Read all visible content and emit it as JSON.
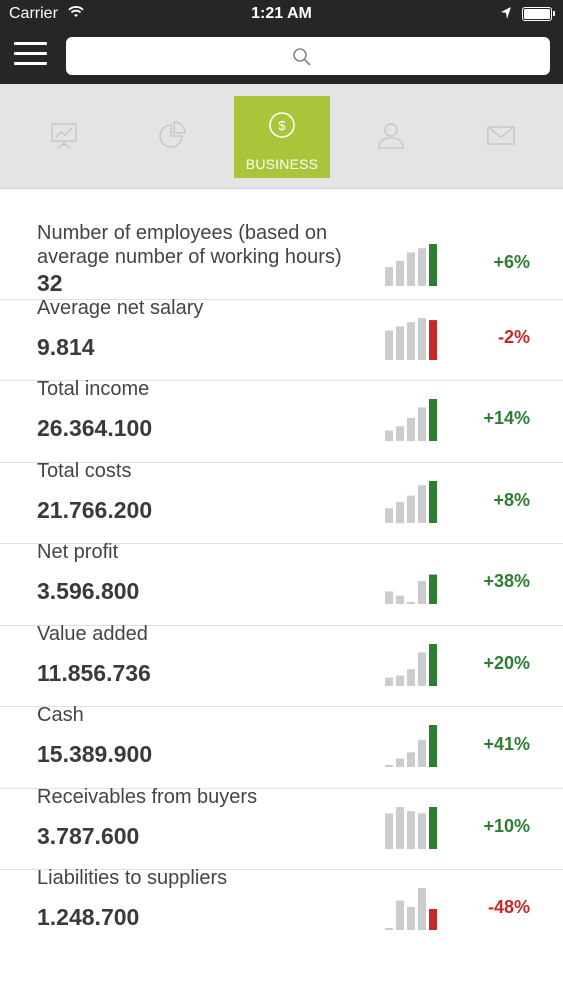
{
  "status_bar": {
    "carrier": "Carrier",
    "time": "1:21 AM"
  },
  "header": {
    "search_icon": "search-icon",
    "menu_icon": "hamburger-icon"
  },
  "tabs": [
    {
      "name": "presentation",
      "icon": "presentation-chart-icon",
      "label": ""
    },
    {
      "name": "pie-chart",
      "icon": "pie-chart-icon",
      "label": ""
    },
    {
      "name": "business",
      "icon": "dollar-circle-icon",
      "label": "BUSINESS",
      "active": true
    },
    {
      "name": "person",
      "icon": "person-icon",
      "label": ""
    },
    {
      "name": "mail",
      "icon": "mail-icon",
      "label": ""
    }
  ],
  "colors": {
    "accent": "#a9c63a",
    "positive": "#2e7d32",
    "negative": "#c62828",
    "bar_grey": "#cccccc"
  },
  "metrics": [
    {
      "label": "Number of employees (based on average number of working hours)",
      "value": "32",
      "change": "+6%",
      "trend": "positive",
      "bars": [
        0.45,
        0.6,
        0.8,
        0.9,
        1.0
      ]
    },
    {
      "label": "Average net salary",
      "value": "9.814",
      "change": "-2%",
      "trend": "negative",
      "bars": [
        0.7,
        0.8,
        0.9,
        1.0,
        0.95
      ]
    },
    {
      "label": "Total income",
      "value": "26.364.100",
      "change": "+14%",
      "trend": "positive",
      "bars": [
        0.25,
        0.35,
        0.55,
        0.8,
        1.0
      ]
    },
    {
      "label": "Total costs",
      "value": "21.766.200",
      "change": "+8%",
      "trend": "positive",
      "bars": [
        0.35,
        0.5,
        0.65,
        0.9,
        1.0
      ]
    },
    {
      "label": "Net profit",
      "value": "3.596.800",
      "change": "+38%",
      "trend": "positive",
      "bars": [
        0.3,
        0.2,
        0.05,
        0.55,
        0.7
      ]
    },
    {
      "label": "Value added",
      "value": "11.856.736",
      "change": "+20%",
      "trend": "positive",
      "bars": [
        0.2,
        0.25,
        0.4,
        0.8,
        1.0
      ]
    },
    {
      "label": "Cash",
      "value": "15.389.900",
      "change": "+41%",
      "trend": "positive",
      "bars": [
        0.05,
        0.2,
        0.35,
        0.65,
        1.0
      ]
    },
    {
      "label": "Receivables from buyers",
      "value": "3.787.600",
      "change": "+10%",
      "trend": "positive",
      "bars": [
        0.85,
        1.0,
        0.9,
        0.85,
        1.0
      ]
    },
    {
      "label": "Liabilities to suppliers",
      "value": "1.248.700",
      "change": "-48%",
      "trend": "negative",
      "bars": [
        0.02,
        0.7,
        0.55,
        1.0,
        0.5
      ]
    }
  ]
}
